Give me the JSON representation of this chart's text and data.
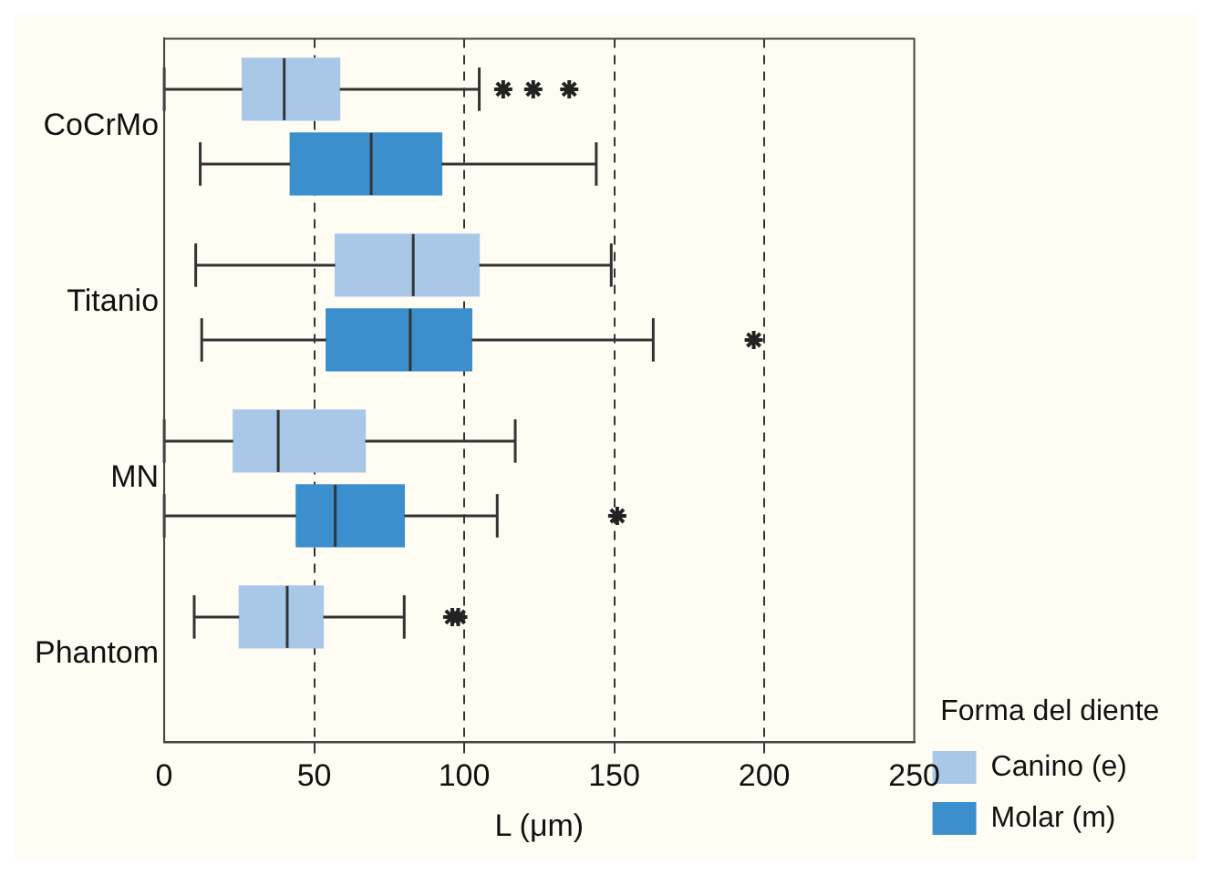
{
  "chart_data": {
    "type": "box",
    "orientation": "horizontal",
    "xlabel": "L (μm)",
    "legend": "right",
    "legend_title": "Forma del diente",
    "grid": "x",
    "xlim": [
      0,
      250
    ],
    "xticks": [
      0,
      50,
      100,
      150,
      200,
      250
    ],
    "categories": [
      "CoCrMo",
      "Titanio",
      "MN",
      "Phantom"
    ],
    "series": [
      {
        "name": "Canino (e)",
        "color": "#a9c8e8",
        "boxes": [
          {
            "low": 0,
            "q1": 26,
            "median": 40,
            "q3": 58.5,
            "high": 105,
            "outliers": [
              113,
              123,
              135
            ]
          },
          {
            "low": 10.5,
            "q1": 57,
            "median": 83,
            "q3": 105,
            "high": 149
          },
          {
            "low": 0,
            "q1": 23,
            "median": 38,
            "q3": 67,
            "high": 117
          },
          {
            "low": 10,
            "q1": 25,
            "median": 41,
            "q3": 53,
            "high": 80,
            "outliers": [
              96,
              98
            ]
          }
        ]
      },
      {
        "name": "Molar (m)",
        "color": "#3b8fcc",
        "boxes": [
          {
            "low": 12,
            "q1": 42,
            "median": 69,
            "q3": 92.5,
            "high": 144
          },
          {
            "low": 12.5,
            "q1": 54,
            "median": 82,
            "q3": 102.5,
            "high": 163,
            "outliers": [
              196.5
            ]
          },
          {
            "low": 0,
            "q1": 44,
            "median": 57,
            "q3": 80,
            "high": 111,
            "outliers": [
              151
            ]
          },
          null
        ]
      }
    ]
  }
}
